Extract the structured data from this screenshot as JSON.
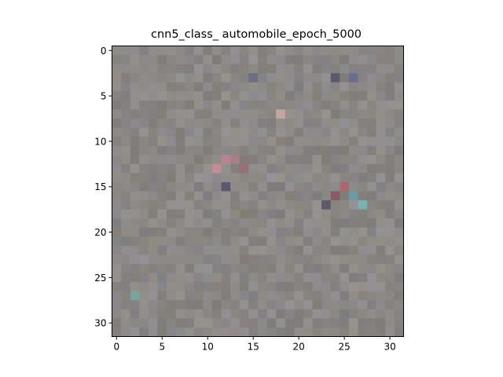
{
  "chart_data": {
    "type": "heatmap",
    "title": "cnn5_class_ automobile_epoch_5000",
    "xlabel": "",
    "ylabel": "",
    "xlim": [
      -0.5,
      31.5
    ],
    "ylim": [
      31.5,
      -0.5
    ],
    "x_ticks": [
      0,
      5,
      10,
      15,
      20,
      25,
      30
    ],
    "y_ticks": [
      0,
      5,
      10,
      15,
      20,
      25,
      30
    ],
    "x_tick_labels": [
      "0",
      "5",
      "10",
      "15",
      "20",
      "25",
      "30"
    ],
    "y_tick_labels": [
      "0",
      "5",
      "10",
      "15",
      "20",
      "25",
      "30"
    ],
    "grid": false,
    "image_size": [
      32,
      32
    ],
    "base_color": "#8a8785",
    "highlight_pixels": [
      {
        "x": 12,
        "y": 12,
        "color": "#b58592"
      },
      {
        "x": 11,
        "y": 13,
        "color": "#c48a9a"
      },
      {
        "x": 13,
        "y": 12,
        "color": "#a87f8a"
      },
      {
        "x": 12,
        "y": 15,
        "color": "#5d5870"
      },
      {
        "x": 25,
        "y": 15,
        "color": "#a86872"
      },
      {
        "x": 24,
        "y": 16,
        "color": "#8a5a66"
      },
      {
        "x": 23,
        "y": 17,
        "color": "#5f5868"
      },
      {
        "x": 26,
        "y": 16,
        "color": "#6d9aa0"
      },
      {
        "x": 18,
        "y": 7,
        "color": "#c3a6a0"
      },
      {
        "x": 24,
        "y": 3,
        "color": "#5b5a6c"
      },
      {
        "x": 26,
        "y": 3,
        "color": "#6a6f92"
      },
      {
        "x": 15,
        "y": 3,
        "color": "#6a6f82"
      },
      {
        "x": 2,
        "y": 27,
        "color": "#7aa0a0"
      },
      {
        "x": 27,
        "y": 17,
        "color": "#7ab0b0"
      },
      {
        "x": 14,
        "y": 13,
        "color": "#9a6f78"
      },
      {
        "x": 17,
        "y": 14,
        "color": "#9a8f9a"
      }
    ]
  }
}
